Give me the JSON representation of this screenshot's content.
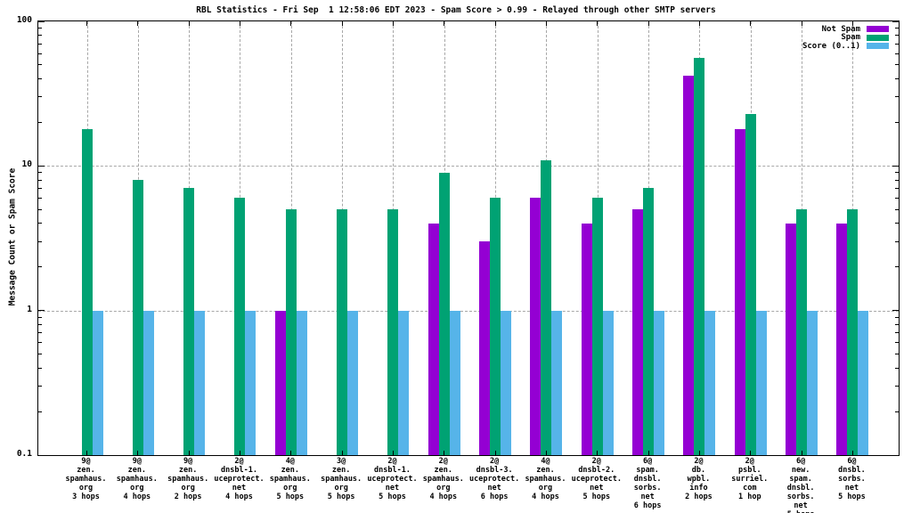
{
  "chart_data": {
    "type": "bar",
    "title": "RBL Statistics - Fri Sep  1 12:58:06 EDT 2023 - Spam Score > 0.99 - Relayed through other SMTP servers",
    "xlabel": "",
    "ylabel": "Message Count or Spam Score",
    "y_scale": "log",
    "ylim": [
      0.1,
      100
    ],
    "y_ticks": [
      0.1,
      1,
      10,
      100
    ],
    "y_tick_labels": [
      "0.1",
      "1",
      "10",
      "100"
    ],
    "grid": true,
    "legend_position": "top-right",
    "background": "#ffffff",
    "grid_color": "#a8a8a8",
    "categories": [
      [
        "9@",
        "zen.",
        "spamhaus.",
        "org",
        "3 hops"
      ],
      [
        "9@",
        "zen.",
        "spamhaus.",
        "org",
        "4 hops"
      ],
      [
        "9@",
        "zen.",
        "spamhaus.",
        "org",
        "2 hops"
      ],
      [
        "2@",
        "dnsbl-1.",
        "uceprotect.",
        "net",
        "4 hops"
      ],
      [
        "4@",
        "zen.",
        "spamhaus.",
        "org",
        "5 hops"
      ],
      [
        "3@",
        "zen.",
        "spamhaus.",
        "org",
        "5 hops"
      ],
      [
        "2@",
        "dnsbl-1.",
        "uceprotect.",
        "net",
        "5 hops"
      ],
      [
        "2@",
        "zen.",
        "spamhaus.",
        "org",
        "4 hops"
      ],
      [
        "2@",
        "dnsbl-3.",
        "uceprotect.",
        "net",
        "6 hops"
      ],
      [
        "4@",
        "zen.",
        "spamhaus.",
        "org",
        "4 hops"
      ],
      [
        "2@",
        "dnsbl-2.",
        "uceprotect.",
        "net",
        "5 hops"
      ],
      [
        "6@",
        "spam.",
        "dnsbl.",
        "sorbs.",
        "net",
        "6 hops"
      ],
      [
        "2@",
        "db.",
        "wpbl.",
        "info",
        "2 hops"
      ],
      [
        "2@",
        "psbl.",
        "surriel.",
        "com",
        "1 hop"
      ],
      [
        "6@",
        "new.",
        "spam.",
        "dnsbl.",
        "sorbs.",
        "net",
        "5 hops"
      ],
      [
        "6@",
        "dnsbl.",
        "sorbs.",
        "net",
        "5 hops"
      ]
    ],
    "series": [
      {
        "name": "Not Spam",
        "color": "#9400d3",
        "values": [
          null,
          null,
          null,
          null,
          1,
          null,
          null,
          4,
          3,
          6,
          4,
          5,
          42,
          18,
          4,
          4
        ]
      },
      {
        "name": "Spam",
        "color": "#00a273",
        "values": [
          18,
          8,
          7,
          6,
          5,
          5,
          5,
          9,
          6,
          11,
          6,
          7,
          56,
          23,
          5,
          5
        ]
      },
      {
        "name": "Score (0..1)",
        "color": "#56b4e9",
        "values": [
          1,
          1,
          1,
          1,
          1,
          1,
          1,
          1,
          1,
          1,
          1,
          1,
          1,
          1,
          1,
          1
        ]
      }
    ]
  }
}
